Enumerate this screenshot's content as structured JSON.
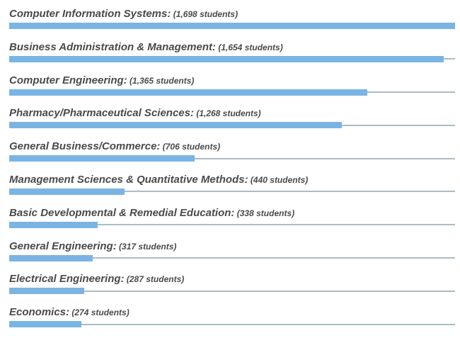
{
  "chart_data": {
    "type": "bar",
    "orientation": "horizontal",
    "categories": [
      "Computer Information Systems",
      "Business Administration & Management",
      "Computer Engineering",
      "Pharmacy/Pharmaceutical Sciences",
      "General Business/Commerce",
      "Management Sciences & Quantitative Methods",
      "Basic Developmental & Remedial Education",
      "General Engineering",
      "Electrical Engineering",
      "Economics"
    ],
    "values": [
      1698,
      1654,
      1365,
      1268,
      706,
      440,
      338,
      317,
      287,
      274
    ],
    "value_labels": [
      "(1,698 students)",
      "(1,654 students)",
      "(1,365 students)",
      "(1,268 students)",
      "(706 students)",
      "(440 students)",
      "(338 students)",
      "(317 students)",
      "(287 students)",
      "(274 students)"
    ],
    "xlim": [
      0,
      1698
    ],
    "grid": false,
    "legend": "none",
    "colors": {
      "bar": "#7ab4e4",
      "track": "#a9bcc6",
      "text": "#4a4a4a"
    }
  }
}
